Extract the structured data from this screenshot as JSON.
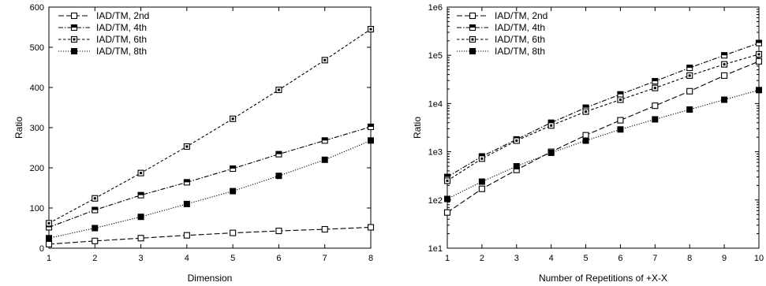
{
  "chart_data": [
    {
      "type": "line",
      "title": "",
      "xlabel": "Dimension",
      "ylabel": "Ratio",
      "x": [
        1,
        2,
        3,
        4,
        5,
        6,
        7,
        8
      ],
      "xlim": [
        1,
        8
      ],
      "ylim": [
        0,
        600
      ],
      "yscale": "linear",
      "xticks": [
        "1",
        "2",
        "3",
        "4",
        "5",
        "6",
        "7",
        "8"
      ],
      "yticks": [
        "0",
        "100",
        "200",
        "300",
        "400",
        "500",
        "600"
      ],
      "legend_position": "top-left",
      "grid": false,
      "series": [
        {
          "name": "IAD/TM, 2nd",
          "line_style": "long-dash",
          "marker": "open-square",
          "values": [
            10,
            18,
            25,
            32,
            38,
            43,
            47,
            52
          ]
        },
        {
          "name": "IAD/TM, 4th",
          "line_style": "dash-dot",
          "marker": "half-square",
          "values": [
            52,
            95,
            132,
            164,
            198,
            234,
            268,
            302
          ]
        },
        {
          "name": "IAD/TM, 6th",
          "line_style": "short-dash",
          "marker": "dotted-square",
          "values": [
            62,
            124,
            187,
            253,
            322,
            394,
            468,
            545
          ]
        },
        {
          "name": "IAD/TM, 8th",
          "line_style": "dotted",
          "marker": "filled-square",
          "values": [
            25,
            50,
            78,
            110,
            142,
            180,
            220,
            268
          ]
        }
      ]
    },
    {
      "type": "line",
      "title": "",
      "xlabel": "Number of Repetitions of +X-X",
      "ylabel": "Ratio",
      "x": [
        1,
        2,
        3,
        4,
        5,
        6,
        7,
        8,
        9,
        10
      ],
      "xlim": [
        1,
        10
      ],
      "ylim": [
        10,
        1000000
      ],
      "yscale": "log",
      "xticks": [
        "1",
        "2",
        "3",
        "4",
        "5",
        "6",
        "7",
        "8",
        "9",
        "10"
      ],
      "yticks": [
        "1e1",
        "1e2",
        "1e3",
        "1e4",
        "1e5",
        "1e6"
      ],
      "legend_position": "top-left",
      "grid": false,
      "series": [
        {
          "name": "IAD/TM, 2nd",
          "line_style": "long-dash",
          "marker": "open-square",
          "values": [
            55,
            170,
            420,
            1000,
            2200,
            4500,
            9000,
            18000,
            38000,
            75000
          ]
        },
        {
          "name": "IAD/TM, 4th",
          "line_style": "dash-dot",
          "marker": "half-square",
          "values": [
            300,
            800,
            1800,
            4000,
            8200,
            15500,
            29000,
            55000,
            100000,
            180000
          ]
        },
        {
          "name": "IAD/TM, 6th",
          "line_style": "short-dash",
          "marker": "dotted-square",
          "values": [
            250,
            720,
            1700,
            3500,
            6800,
            12000,
            21000,
            38000,
            65000,
            105000
          ]
        },
        {
          "name": "IAD/TM, 8th",
          "line_style": "dotted",
          "marker": "filled-square",
          "values": [
            105,
            240,
            500,
            950,
            1700,
            2900,
            4700,
            7500,
            12000,
            19000
          ]
        }
      ]
    }
  ]
}
